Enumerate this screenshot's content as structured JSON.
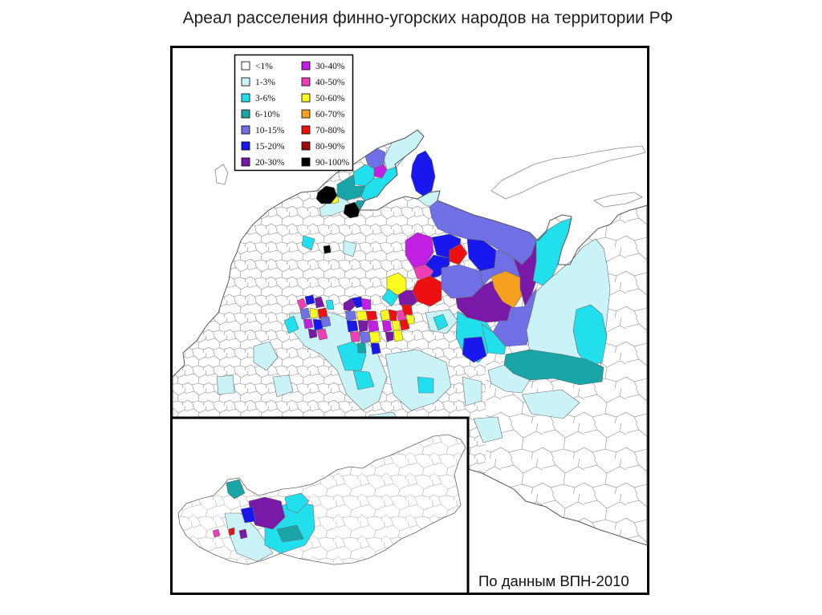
{
  "title": "Ареал расселения финно-угорских народов на территории РФ",
  "legend": {
    "items": [
      {
        "label": "<1%",
        "color": "#ffffff"
      },
      {
        "label": "1-3%",
        "color": "#c9f3f6"
      },
      {
        "label": "3-6%",
        "color": "#22dfee"
      },
      {
        "label": "6-10%",
        "color": "#19a5a8"
      },
      {
        "label": "10-15%",
        "color": "#6f6fe6"
      },
      {
        "label": "15-20%",
        "color": "#1717ee"
      },
      {
        "label": "20-30%",
        "color": "#7a18a8"
      },
      {
        "label": "30-40%",
        "color": "#c21fe2"
      },
      {
        "label": "40-50%",
        "color": "#ee3fb4"
      },
      {
        "label": "50-60%",
        "color": "#fafa1e"
      },
      {
        "label": "60-70%",
        "color": "#f5a01e"
      },
      {
        "label": "70-80%",
        "color": "#ee1010"
      },
      {
        "label": "80-90%",
        "color": "#a00808"
      },
      {
        "label": "90-100%",
        "color": "#000000"
      }
    ]
  },
  "source_note": "По данным ВПН-2010"
}
